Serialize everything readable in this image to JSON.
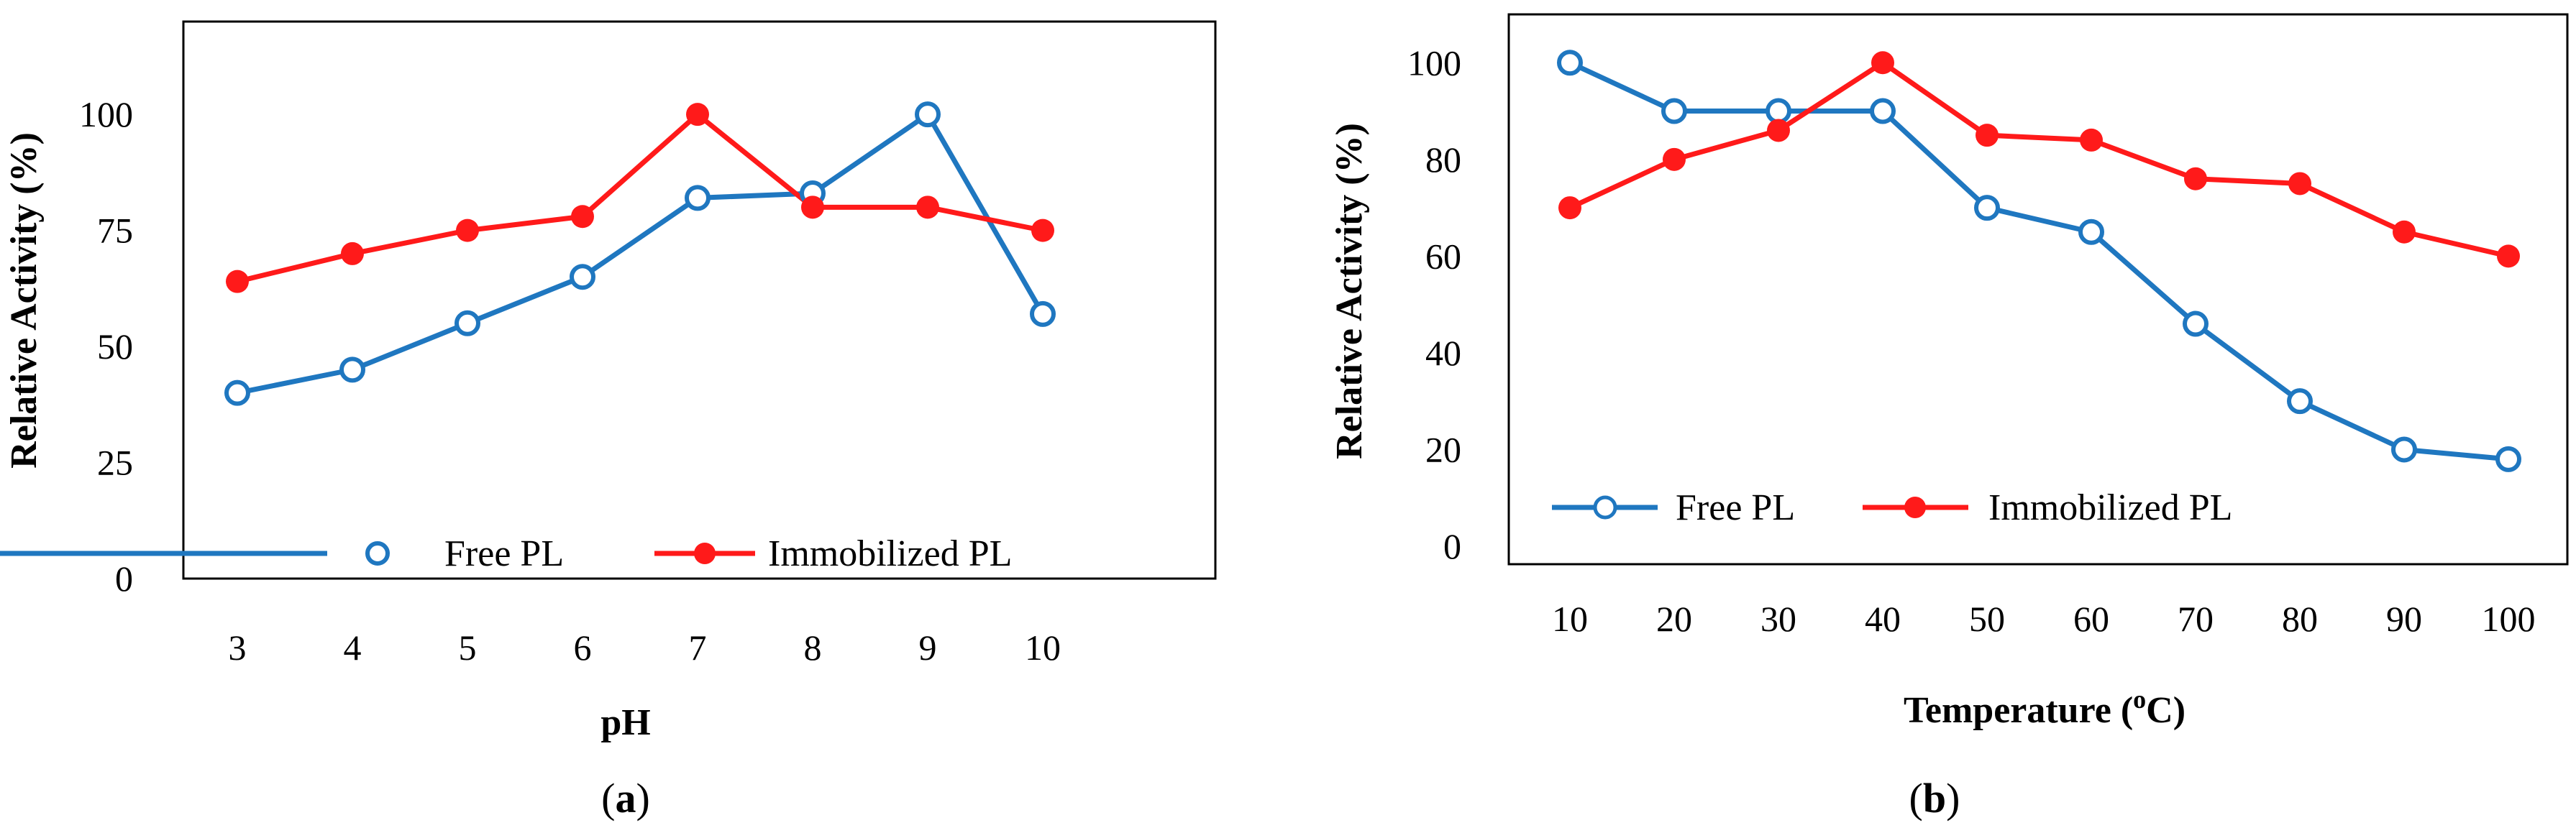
{
  "chart_data": [
    {
      "panel": "a",
      "type": "line",
      "xlabel": "pH",
      "ylabel": "Relative Activity (%)",
      "categories": [
        "3",
        "4",
        "5",
        "6",
        "7",
        "8",
        "9",
        "10"
      ],
      "ylim": [
        0,
        120
      ],
      "yticks": [
        "0",
        "25",
        "50",
        "75",
        "100"
      ],
      "grid": false,
      "legend_position": "bottom",
      "series": [
        {
          "name": "Free PL",
          "color": "#1F77C0",
          "marker": "open-circle",
          "values": [
            40,
            45,
            55,
            65,
            82,
            83,
            100,
            57
          ]
        },
        {
          "name": "Immobilized PL",
          "color": "#FF1A1A",
          "marker": "filled-circle",
          "values": [
            64,
            70,
            75,
            78,
            100,
            80,
            80,
            75
          ]
        }
      ],
      "caption": {
        "open": "(",
        "letter": "a",
        "close": ")"
      }
    },
    {
      "panel": "b",
      "type": "line",
      "xlabel": "Temperature (",
      "xlabel_sup": "o",
      "xlabel_end": "C)",
      "ylabel": "Relative Activity (%)",
      "categories": [
        "10",
        "20",
        "30",
        "40",
        "50",
        "60",
        "70",
        "80",
        "90",
        "100"
      ],
      "ylim": [
        0,
        110
      ],
      "yticks": [
        "0",
        "20",
        "40",
        "60",
        "80",
        "100"
      ],
      "grid": false,
      "legend_position": "bottom-left",
      "series": [
        {
          "name": "Free PL",
          "color": "#1F77C0",
          "marker": "open-circle",
          "values": [
            100,
            90,
            90,
            90,
            70,
            65,
            46,
            30,
            20,
            18
          ]
        },
        {
          "name": "Immobilized PL",
          "color": "#FF1A1A",
          "marker": "filled-circle",
          "values": [
            70,
            80,
            86,
            100,
            85,
            84,
            76,
            75,
            65,
            60
          ]
        }
      ],
      "caption": {
        "open": "(",
        "letter": "b",
        "close": ")"
      }
    }
  ]
}
